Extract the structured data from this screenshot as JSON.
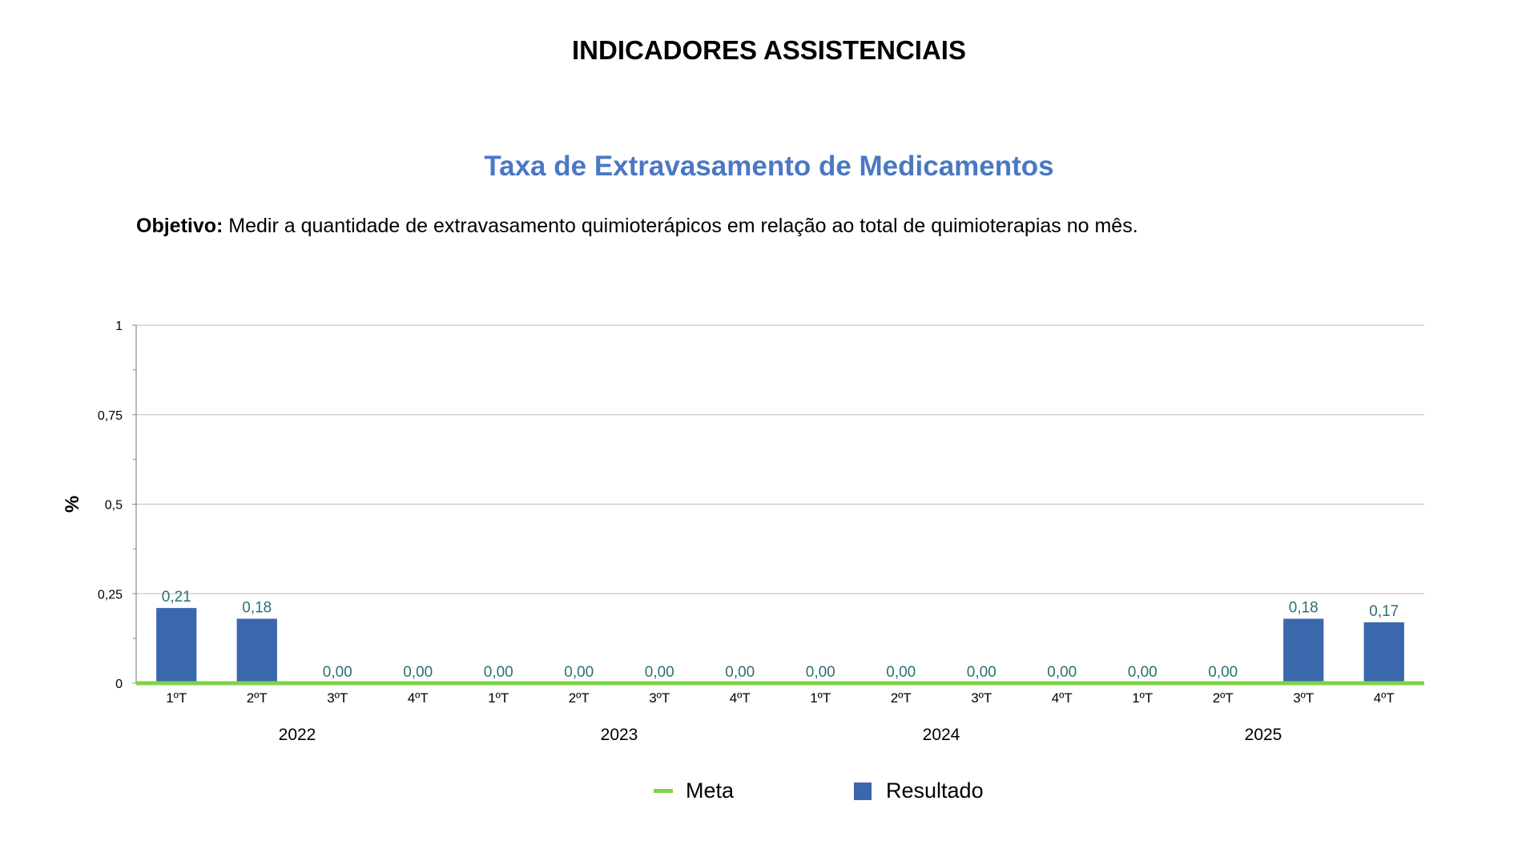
{
  "header": {
    "title": "INDICADORES ASSISTENCIAIS",
    "chart_title": "Taxa de Extravasamento de Medicamentos",
    "objective_label": "Objetivo:",
    "objective_text": " Medir a quantidade de extravasamento quimioterápicos em relação ao total de quimioterapias no mês."
  },
  "colors": {
    "bar": "#3b67ad",
    "meta": "#7ed348",
    "label": "#2e7070",
    "title": "#4a78c4"
  },
  "chart_data": {
    "type": "bar",
    "title": "Taxa de Extravasamento de Medicamentos",
    "ylabel": "%",
    "xlabel": "",
    "ylim": [
      0,
      1
    ],
    "yticks": [
      0,
      0.25,
      0.5,
      0.75,
      1
    ],
    "ytick_labels": [
      "0",
      "0,25",
      "0,5",
      "0,75",
      "1"
    ],
    "grid": true,
    "categories": [
      "1ºT",
      "2ºT",
      "3ºT",
      "4ºT",
      "1ºT",
      "2ºT",
      "3ºT",
      "4ºT",
      "1ºT",
      "2ºT",
      "3ºT",
      "4ºT",
      "1ºT",
      "2ºT",
      "3ºT",
      "4ºT"
    ],
    "groups": [
      {
        "label": "2022",
        "count": 4
      },
      {
        "label": "2023",
        "count": 4
      },
      {
        "label": "2024",
        "count": 4
      },
      {
        "label": "2025",
        "count": 4
      }
    ],
    "series": [
      {
        "name": "Resultado",
        "type": "bar",
        "values": [
          0.21,
          0.18,
          0,
          0,
          0,
          0,
          0,
          0,
          0,
          0,
          0,
          0,
          0,
          0,
          0.18,
          0.17
        ],
        "labels": [
          "0,21",
          "0,18",
          "0,00",
          "0,00",
          "0,00",
          "0,00",
          "0,00",
          "0,00",
          "0,00",
          "0,00",
          "0,00",
          "0,00",
          "0,00",
          "0,00",
          "0,18",
          "0,17"
        ]
      },
      {
        "name": "Meta",
        "type": "line",
        "values": [
          0,
          0,
          0,
          0,
          0,
          0,
          0,
          0,
          0,
          0,
          0,
          0,
          0,
          0,
          0,
          0
        ]
      }
    ],
    "legend": {
      "placement": "bottom-center",
      "entries": [
        "Meta",
        "Resultado"
      ]
    }
  }
}
